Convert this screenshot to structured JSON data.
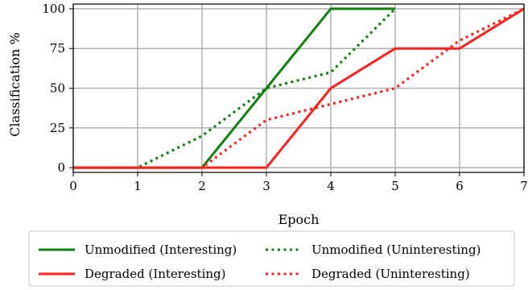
{
  "chart_data": {
    "type": "line",
    "xlabel": "Epoch",
    "ylabel": "Classification %",
    "xlim": [
      0,
      7
    ],
    "ylim": [
      -3,
      103
    ],
    "xticks": [
      "0",
      "1",
      "2",
      "3",
      "4",
      "5",
      "6",
      "7"
    ],
    "yticks": [
      "0",
      "25",
      "50",
      "75",
      "100"
    ],
    "grid": true,
    "legend_position": "bottom",
    "series": [
      {
        "name": "Unmodified (Interesting)",
        "color": "#118011",
        "style": "solid",
        "x": [
          0,
          1,
          2,
          3,
          4,
          5
        ],
        "values": [
          0,
          0,
          0,
          50,
          100,
          100
        ]
      },
      {
        "name": "Degraded (Interesting)",
        "color": "#ff2020",
        "style": "solid",
        "x": [
          0,
          1,
          2,
          3,
          4,
          5,
          6,
          7
        ],
        "values": [
          0,
          0,
          0,
          0,
          50,
          75,
          75,
          100
        ]
      },
      {
        "name": "Unmodified (Uninteresting)",
        "color": "#118011",
        "style": "dotted",
        "x": [
          0,
          1,
          2,
          3,
          4,
          5
        ],
        "values": [
          0,
          0,
          20,
          50,
          60,
          100
        ]
      },
      {
        "name": "Degraded (Uninteresting)",
        "color": "#ff2020",
        "style": "dotted",
        "x": [
          0,
          1,
          2,
          3,
          4,
          5,
          6,
          7
        ],
        "values": [
          0,
          0,
          0,
          30,
          40,
          50,
          80,
          100
        ]
      }
    ]
  }
}
